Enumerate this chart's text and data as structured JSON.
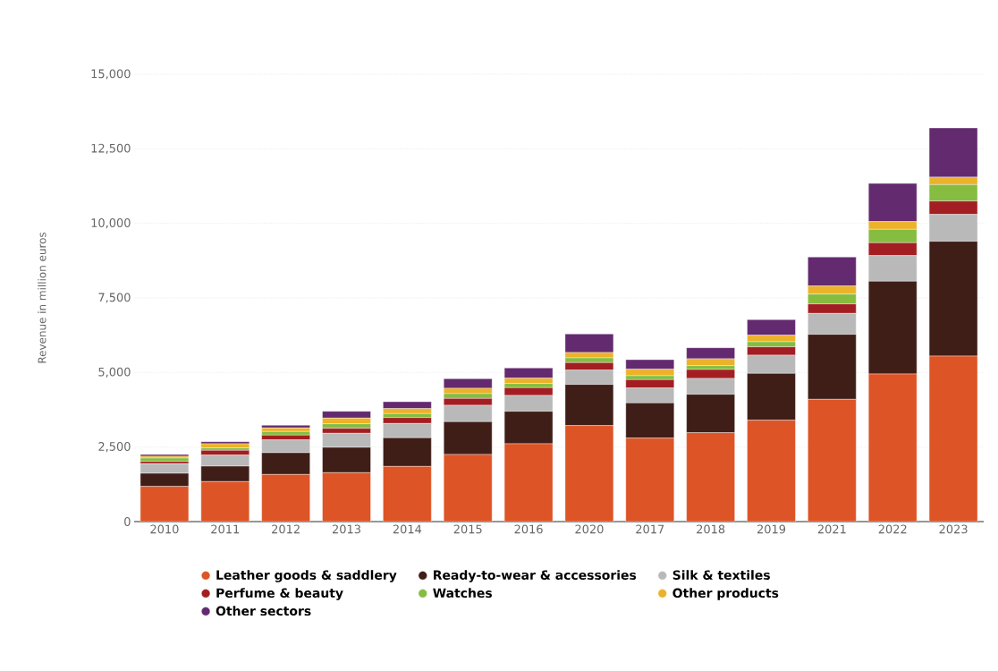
{
  "chart_data": {
    "type": "bar",
    "stacked": true,
    "ylabel": "Revenue in million euros",
    "categories": [
      "2010",
      "2011",
      "2012",
      "2013",
      "2014",
      "2015",
      "2016",
      "2020",
      "2017",
      "2018",
      "2019",
      "2021",
      "2022",
      "2023"
    ],
    "series": [
      {
        "name": "Leather goods & saddlery",
        "color": "#dd5426",
        "values": [
          1180,
          1340,
          1580,
          1640,
          1850,
          2250,
          2610,
          3220,
          2800,
          2980,
          3400,
          4100,
          4950,
          5550
        ]
      },
      {
        "name": "Ready-to-wear & accessories",
        "color": "#3f1e18",
        "values": [
          440,
          520,
          730,
          850,
          960,
          1100,
          1090,
          1380,
          1180,
          1290,
          1570,
          2180,
          3110,
          3850
        ]
      },
      {
        "name": "Silk & textiles",
        "color": "#b9b9b9",
        "values": [
          320,
          370,
          430,
          470,
          480,
          550,
          530,
          480,
          500,
          530,
          610,
          700,
          860,
          900
        ]
      },
      {
        "name": "Perfume & beauty",
        "color": "#a31e22",
        "values": [
          80,
          160,
          160,
          170,
          200,
          230,
          260,
          250,
          280,
          300,
          280,
          320,
          430,
          450
        ]
      },
      {
        "name": "Watches",
        "color": "#86bd40",
        "values": [
          110,
          80,
          120,
          150,
          130,
          160,
          140,
          160,
          130,
          130,
          170,
          330,
          450,
          550
        ]
      },
      {
        "name": "Other products",
        "color": "#ecb22a",
        "values": [
          60,
          140,
          120,
          190,
          170,
          180,
          180,
          180,
          220,
          230,
          220,
          270,
          260,
          250
        ]
      },
      {
        "name": "Other sectors",
        "color": "#632a6f",
        "values": [
          60,
          70,
          90,
          230,
          230,
          320,
          340,
          620,
          320,
          370,
          520,
          970,
          1280,
          1650
        ]
      }
    ],
    "ylim": [
      0,
      15000
    ],
    "yticks": [
      {
        "value": 0,
        "label": "0"
      },
      {
        "value": 2500,
        "label": "2,500"
      },
      {
        "value": 5000,
        "label": "5,000"
      },
      {
        "value": 7500,
        "label": "7,500"
      },
      {
        "value": 10000,
        "label": "10,000"
      },
      {
        "value": 12500,
        "label": "12,500"
      },
      {
        "value": 15000,
        "label": "15,000"
      }
    ],
    "grid": "y",
    "legend": "bottom"
  }
}
